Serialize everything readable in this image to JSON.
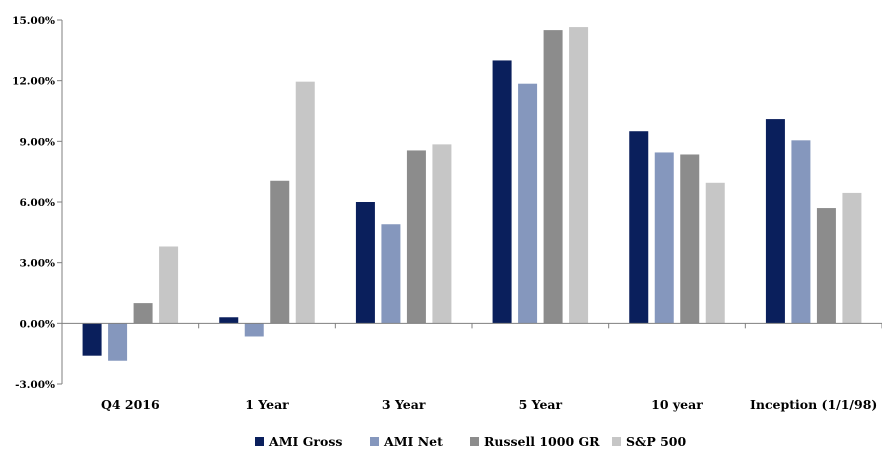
{
  "chart_data": {
    "type": "bar",
    "categories": [
      "Q4 2016",
      "1 Year",
      "3 Year",
      "5 Year",
      "10 year",
      "Inception (1/1/98)"
    ],
    "series": [
      {
        "name": "AMI Gross",
        "color": "#0a1f5c",
        "values": [
          -1.6,
          0.3,
          6.0,
          13.0,
          9.5,
          10.1
        ]
      },
      {
        "name": "AMI Net",
        "color": "#8597bd",
        "values": [
          -1.85,
          -0.65,
          4.9,
          11.85,
          8.45,
          9.05
        ]
      },
      {
        "name": "Russell 1000 GR",
        "color": "#8c8c8c",
        "values": [
          1.0,
          7.05,
          8.55,
          14.5,
          8.35,
          5.7
        ]
      },
      {
        "name": "S&P 500",
        "color": "#c6c6c6",
        "values": [
          3.8,
          11.95,
          8.85,
          14.65,
          6.95,
          6.45
        ]
      }
    ],
    "yticks": [
      "-3.00%",
      "0.00%",
      "3.00%",
      "6.00%",
      "9.00%",
      "12.00%",
      "15.00%"
    ],
    "ylim": [
      -3,
      15
    ],
    "title": "",
    "xlabel": "",
    "ylabel": "",
    "grid": false,
    "legend_position": "bottom"
  }
}
